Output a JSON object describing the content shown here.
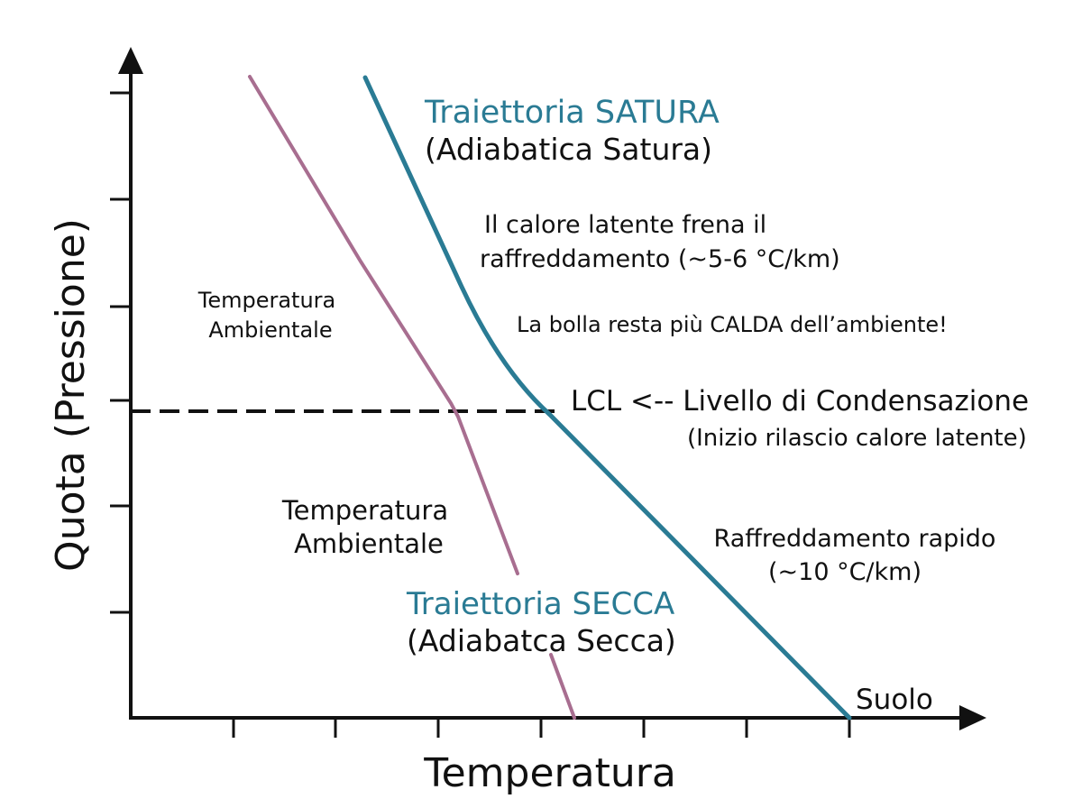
{
  "axes": {
    "y_label": "Quota (Pressione)",
    "x_label": "Temperatura"
  },
  "colors": {
    "saturated": "#2a7b94",
    "environment": "#a86e90",
    "axis": "#111111",
    "text": "#111111"
  },
  "labels": {
    "saturated_title": "Traiettoria SATURA",
    "saturated_subtitle": "(Adiabatica Satura)",
    "latent_line1": "Il calore latente frena il",
    "latent_line2": "raffreddamento (~5-6 °C/km)",
    "warmer": "La bolla resta più CALDA dell’ambiente!",
    "env_upper_line1": "Temperatura",
    "env_upper_line2": "Ambientale",
    "lcl_line1": "LCL <-- Livello di Condensazione",
    "lcl_line2": "(Inizio rilascio calore latente)",
    "env_lower_line1": "Temperatura",
    "env_lower_line2": "Ambientale",
    "rapid_line1": "Raffreddamento rapido",
    "rapid_line2": "(~10 °C/km)",
    "dry_title": "Traiettoria SECCA",
    "dry_subtitle": "(Adiabatca Secca)",
    "ground": "Suolo"
  }
}
